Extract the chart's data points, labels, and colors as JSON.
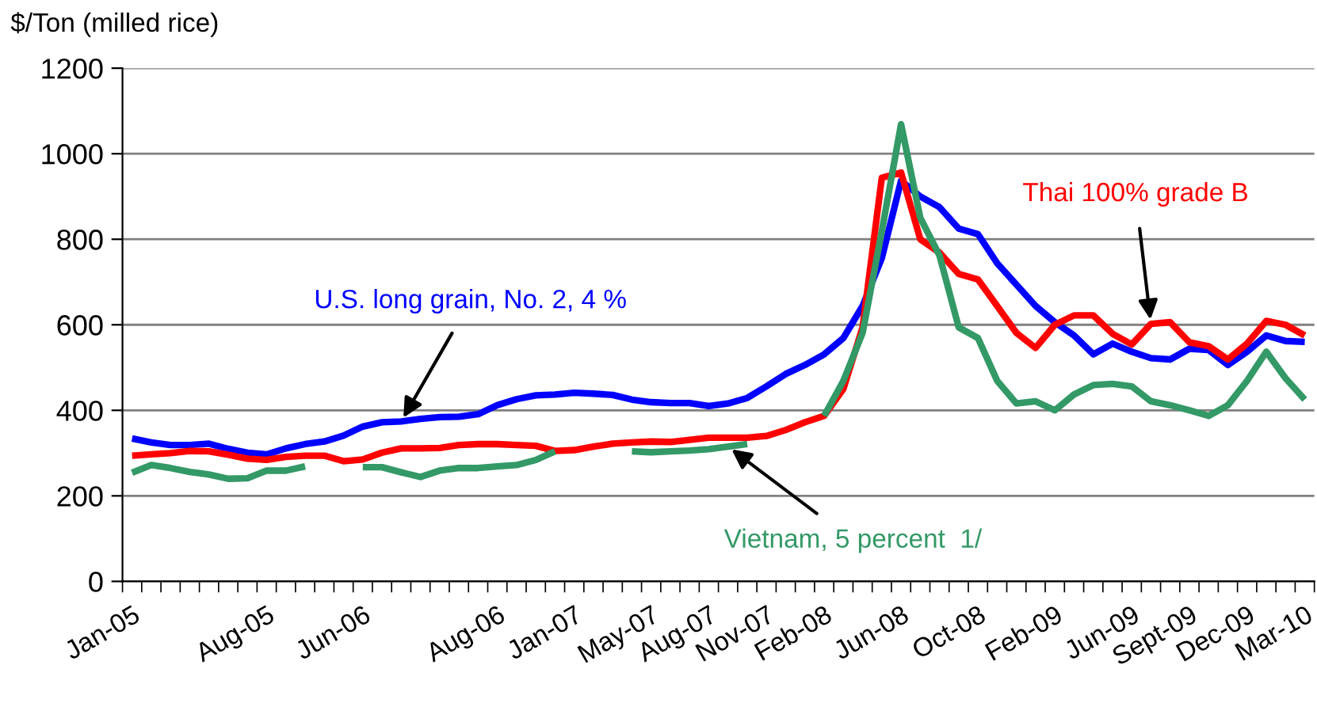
{
  "chart_data": {
    "type": "line",
    "ylabel": "$/Ton (milled rice)",
    "categories": [
      "Jan-05",
      null,
      null,
      null,
      null,
      null,
      null,
      "Aug-05",
      null,
      null,
      null,
      null,
      "Jun-06",
      null,
      null,
      null,
      null,
      null,
      null,
      "Aug-06",
      null,
      null,
      null,
      "Jan-07",
      null,
      null,
      null,
      "May-07",
      null,
      null,
      "Aug-07",
      null,
      null,
      "Nov-07",
      null,
      null,
      "Feb-08",
      null,
      null,
      null,
      "Jun-08",
      null,
      null,
      null,
      "Oct-08",
      null,
      null,
      null,
      "Feb-09",
      null,
      null,
      null,
      "Jun-09",
      null,
      null,
      "Sept-09",
      null,
      null,
      "Dec-09",
      null,
      null,
      "Mar-10"
    ],
    "series": [
      {
        "name": "U.S. long grain, No. 2, 4 %",
        "color": "#0000ff",
        "values": [
          334,
          325,
          319,
          319,
          322,
          310,
          301,
          297,
          311,
          321,
          327,
          341,
          362,
          372,
          374,
          380,
          384,
          385,
          391,
          412,
          426,
          435,
          437,
          441,
          439,
          436,
          425,
          419,
          417,
          417,
          410,
          416,
          429,
          456,
          485,
          506,
          531,
          569,
          644,
          756,
          937,
          900,
          875,
          825,
          812,
          744,
          694,
          644,
          606,
          575,
          531,
          556,
          537,
          522,
          519,
          544,
          541,
          506,
          537,
          575,
          562,
          560
        ]
      },
      {
        "name": "Thai 100% grade B",
        "color": "#ff0000",
        "values": [
          294,
          297,
          300,
          305,
          304,
          296,
          287,
          284,
          291,
          294,
          294,
          281,
          285,
          301,
          311,
          311,
          312,
          319,
          321,
          321,
          319,
          317,
          305,
          307,
          315,
          322,
          325,
          327,
          326,
          331,
          336,
          336,
          336,
          340,
          354,
          372,
          387,
          450,
          594,
          944,
          956,
          800,
          769,
          719,
          706,
          644,
          581,
          546,
          600,
          622,
          622,
          579,
          554,
          602,
          606,
          559,
          550,
          519,
          556,
          609,
          600,
          575
        ]
      },
      {
        "name": "Vietnam, 5 percent  1/",
        "color": "#339966",
        "values": [
          254,
          272,
          265,
          256,
          250,
          240,
          241,
          259,
          259,
          269,
          null,
          null,
          267,
          267,
          255,
          244,
          259,
          265,
          265,
          269,
          272,
          284,
          304,
          null,
          null,
          null,
          304,
          302,
          304,
          306,
          309,
          315,
          321,
          null,
          null,
          null,
          387,
          469,
          581,
          819,
          1069,
          850,
          762,
          594,
          569,
          469,
          416,
          421,
          400,
          437,
          459,
          462,
          456,
          421,
          412,
          400,
          387,
          412,
          469,
          537,
          475,
          425
        ]
      }
    ],
    "ylim": [
      0,
      1200
    ],
    "yticks": [
      0,
      200,
      400,
      600,
      800,
      1000,
      1200
    ],
    "grid": "y",
    "legend": false,
    "marker": "none",
    "line_style": "solid"
  }
}
